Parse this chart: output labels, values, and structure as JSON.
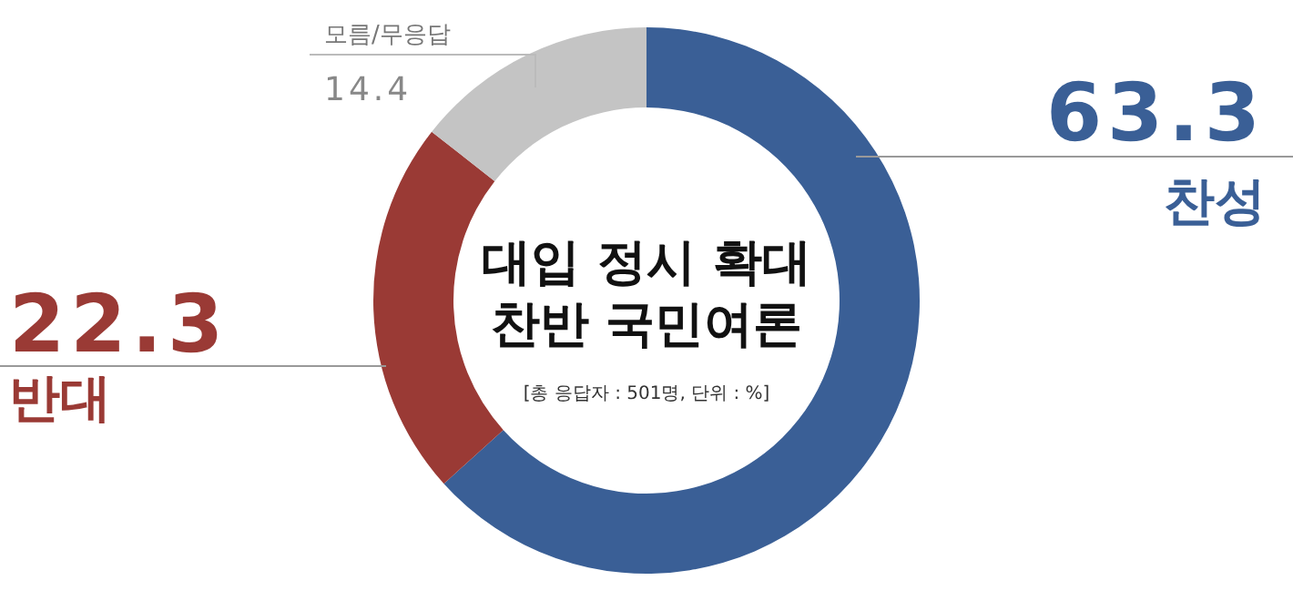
{
  "chart_data": {
    "type": "donut",
    "title": "대입 정시 확대\n찬반 국민여론",
    "subtitle": "[총 응답자 : 501명, 단위 : %]",
    "categories": [
      "찬성",
      "반대",
      "모름/무응답"
    ],
    "values": [
      63.3,
      22.3,
      14.4
    ],
    "colors": [
      "#3a5f96",
      "#9a3a35",
      "#c4c4c4"
    ],
    "data_labels": true
  }
}
